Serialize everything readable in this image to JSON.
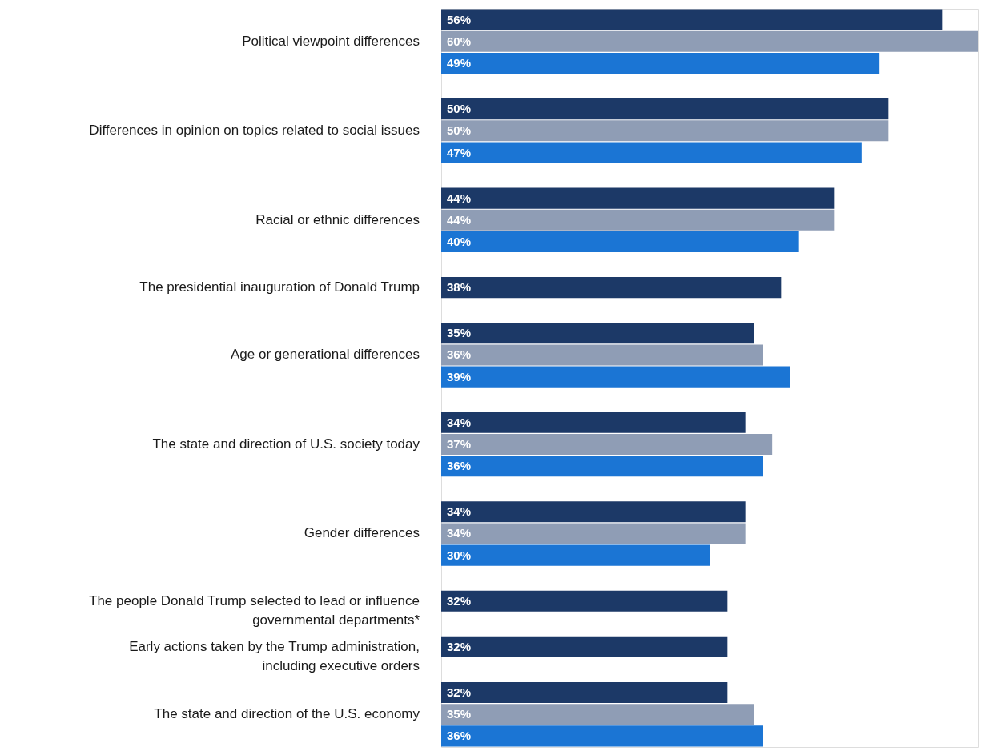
{
  "chart_data": {
    "type": "bar",
    "orientation": "horizontal",
    "categories": [
      "Political viewpoint differences",
      "Differences in opinion on topics related to social issues",
      "Racial or ethnic differences",
      "The presidential inauguration of Donald Trump",
      "Age or generational differences",
      "The state and direction of U.S. society today",
      "Gender differences",
      "The people Donald Trump selected to lead or influence governmental departments*",
      "Early actions taken by the Trump administration, including executive orders",
      "The state and direction of the U.S. economy"
    ],
    "series": [
      {
        "color": "#1c3967",
        "values": [
          56,
          50,
          44,
          38,
          35,
          34,
          34,
          32,
          32,
          32
        ],
        "value_labels": [
          "56%",
          "50%",
          "44%",
          "38%",
          "35%",
          "34%",
          "34%",
          "32%",
          "32%",
          "32%"
        ]
      },
      {
        "color": "#8f9db5",
        "values": [
          60,
          50,
          44,
          null,
          36,
          37,
          34,
          null,
          null,
          35
        ],
        "value_labels": [
          "60%",
          "50%",
          "44%",
          null,
          "36%",
          "37%",
          "34%",
          null,
          null,
          "35%"
        ]
      },
      {
        "color": "#1b75d4",
        "values": [
          49,
          47,
          40,
          null,
          39,
          36,
          30,
          null,
          null,
          36
        ],
        "value_labels": [
          "49%",
          "47%",
          "40%",
          null,
          "39%",
          "36%",
          "30%",
          null,
          null,
          "36%"
        ]
      }
    ]
  }
}
